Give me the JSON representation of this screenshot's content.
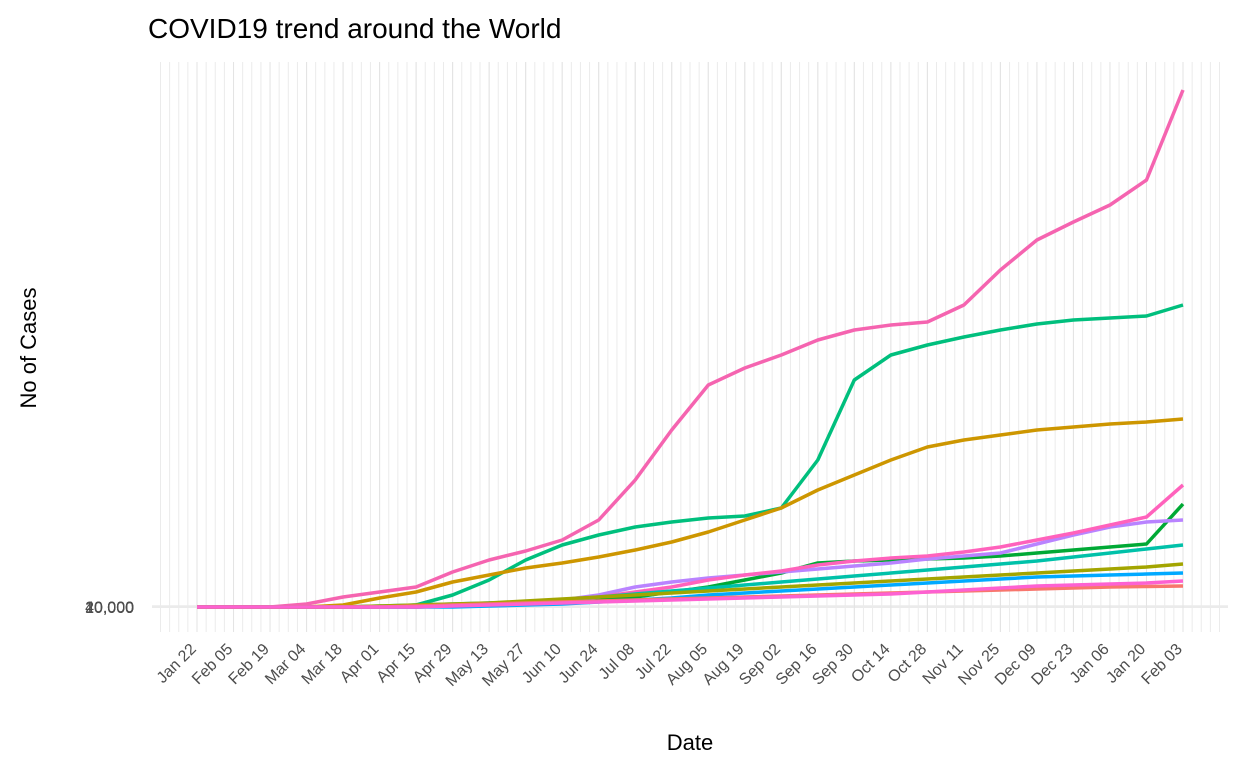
{
  "chart_data": {
    "type": "line",
    "title": "COVID19 trend around the World",
    "x_label": "Date",
    "y_label": "No of Cases",
    "categories": [
      "Jan 22",
      "Feb 05",
      "Feb 19",
      "Mar 04",
      "Mar 18",
      "Apr 01",
      "Apr 15",
      "Apr 29",
      "May 13",
      "May 27",
      "Jun 10",
      "Jun 24",
      "Jul 08",
      "Jul 22",
      "Aug 05",
      "Aug 19",
      "Sep 02",
      "Sep 16",
      "Sep 30",
      "Oct 14",
      "Oct 28",
      "Nov 11",
      "Nov 25",
      "Dec 09",
      "Dec 23",
      "Jan 06",
      "Jan 20",
      "Feb 03"
    ],
    "ylim": [
      -1450000,
      31610000
    ],
    "yticks": [
      {
        "value": 0,
        "label": "0"
      },
      {
        "value": 10000,
        "label": "10,000"
      },
      {
        "value": 20000,
        "label": "20,000"
      },
      {
        "value": 40000,
        "label": "40,000"
      }
    ],
    "grid": true,
    "series": [
      {
        "color": "#f564b0",
        "values": [
          0,
          0,
          0,
          174000,
          580000,
          870000,
          1160000,
          2030000,
          2726000,
          3248000,
          3886000,
          5046000,
          7366000,
          10266000,
          12876000,
          13862000,
          14616000,
          15486000,
          16066000,
          16356000,
          16530000,
          17516000,
          19546000,
          21286000,
          22330000,
          23316000,
          24766000,
          29986000
        ]
      },
      {
        "color": "#00bf7d",
        "values": [
          0,
          0,
          0,
          0,
          0,
          0,
          116000,
          696000,
          1566000,
          2726000,
          3596000,
          4176000,
          4640000,
          4930000,
          5162000,
          5278000,
          5742000,
          8526000,
          13166000,
          14616000,
          15196000,
          15660000,
          16066000,
          16414000,
          16646000,
          16762000,
          16878000,
          17516000
        ]
      },
      {
        "color": "#cd9600",
        "values": [
          0,
          0,
          0,
          0,
          116000,
          522000,
          870000,
          1450000,
          1856000,
          2262000,
          2552000,
          2900000,
          3306000,
          3770000,
          4350000,
          5046000,
          5742000,
          6786000,
          7656000,
          8526000,
          9280000,
          9686000,
          9976000,
          10266000,
          10440000,
          10614000,
          10730000,
          10904000
        ]
      },
      {
        "color": "#00a935",
        "values": [
          0,
          0,
          0,
          0,
          0,
          0,
          0,
          58000,
          116000,
          174000,
          290000,
          406000,
          580000,
          870000,
          1160000,
          1566000,
          1972000,
          2552000,
          2668000,
          2726000,
          2784000,
          2842000,
          2958000,
          3132000,
          3306000,
          3480000,
          3654000,
          5974000
        ]
      },
      {
        "color": "#b983ff",
        "values": [
          0,
          0,
          0,
          0,
          0,
          0,
          58000,
          116000,
          232000,
          290000,
          406000,
          696000,
          1160000,
          1450000,
          1682000,
          1856000,
          2030000,
          2204000,
          2378000,
          2552000,
          2784000,
          2958000,
          3132000,
          3654000,
          4176000,
          4640000,
          4930000,
          5046000
        ]
      },
      {
        "color": "#ff62bc",
        "values": [
          0,
          0,
          0,
          0,
          0,
          0,
          0,
          58000,
          116000,
          232000,
          348000,
          580000,
          870000,
          1160000,
          1566000,
          1856000,
          2088000,
          2436000,
          2668000,
          2842000,
          2958000,
          3190000,
          3480000,
          3886000,
          4292000,
          4756000,
          5220000,
          7076000
        ]
      },
      {
        "color": "#00a9ff",
        "values": [
          0,
          0,
          0,
          0,
          0,
          0,
          0,
          0,
          58000,
          116000,
          174000,
          290000,
          406000,
          522000,
          696000,
          812000,
          928000,
          1044000,
          1160000,
          1276000,
          1392000,
          1508000,
          1624000,
          1740000,
          1798000,
          1856000,
          1914000,
          1972000
        ]
      },
      {
        "color": "#00c1a9",
        "values": [
          0,
          0,
          0,
          0,
          0,
          58000,
          116000,
          174000,
          232000,
          290000,
          406000,
          580000,
          754000,
          928000,
          1102000,
          1276000,
          1450000,
          1624000,
          1798000,
          1972000,
          2146000,
          2320000,
          2494000,
          2668000,
          2900000,
          3132000,
          3364000,
          3596000
        ]
      },
      {
        "color": "#a3a500",
        "values": [
          0,
          0,
          0,
          0,
          0,
          58000,
          116000,
          174000,
          232000,
          348000,
          464000,
          580000,
          696000,
          812000,
          928000,
          1044000,
          1160000,
          1276000,
          1392000,
          1508000,
          1624000,
          1740000,
          1856000,
          1972000,
          2088000,
          2204000,
          2320000,
          2494000
        ]
      },
      {
        "color": "#f8766d",
        "values": [
          0,
          0,
          0,
          0,
          0,
          0,
          58000,
          116000,
          174000,
          232000,
          290000,
          348000,
          406000,
          464000,
          522000,
          580000,
          638000,
          696000,
          754000,
          812000,
          870000,
          928000,
          986000,
          1044000,
          1102000,
          1160000,
          1189000,
          1218000
        ]
      },
      {
        "color": "#fd61d1",
        "values": [
          0,
          0,
          0,
          0,
          0,
          0,
          0,
          58000,
          116000,
          174000,
          232000,
          290000,
          348000,
          406000,
          464000,
          522000,
          580000,
          638000,
          696000,
          754000,
          870000,
          986000,
          1102000,
          1218000,
          1276000,
          1334000,
          1392000,
          1508000
        ]
      }
    ]
  }
}
